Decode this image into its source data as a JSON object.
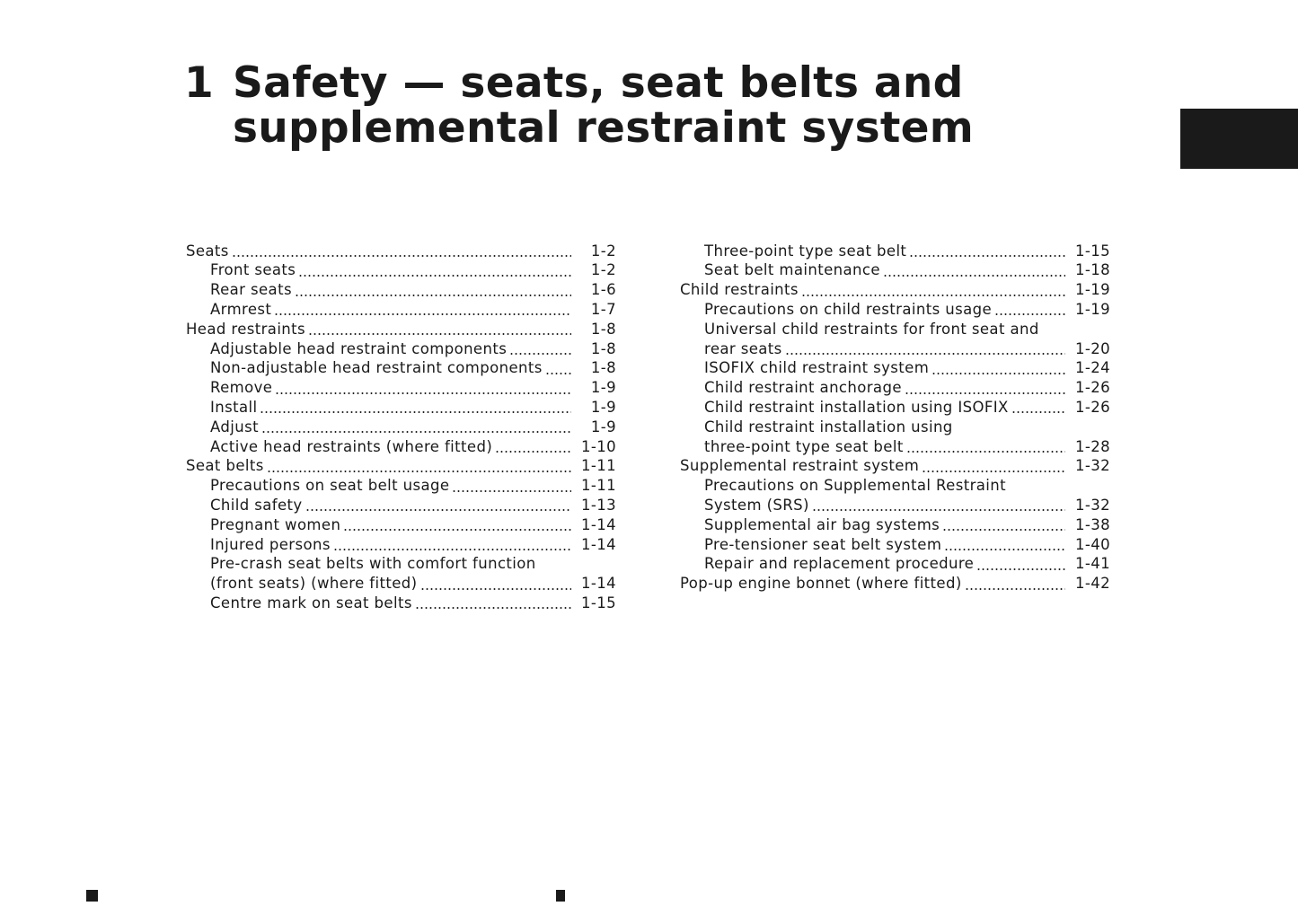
{
  "header": {
    "number": "1",
    "title_lines": [
      "Safety — seats, seat belts and",
      "supplemental restraint system"
    ]
  },
  "columns": [
    [
      {
        "level": 1,
        "lines": [
          "Seats"
        ],
        "page": "1-2"
      },
      {
        "level": 2,
        "lines": [
          "Front seats"
        ],
        "page": "1-2"
      },
      {
        "level": 2,
        "lines": [
          "Rear seats"
        ],
        "page": "1-6"
      },
      {
        "level": 2,
        "lines": [
          "Armrest"
        ],
        "page": "1-7"
      },
      {
        "level": 1,
        "lines": [
          "Head restraints"
        ],
        "page": "1-8"
      },
      {
        "level": 2,
        "lines": [
          "Adjustable head restraint components"
        ],
        "page": "1-8"
      },
      {
        "level": 2,
        "lines": [
          "Non-adjustable head restraint components"
        ],
        "page": "1-8"
      },
      {
        "level": 2,
        "lines": [
          "Remove"
        ],
        "page": "1-9"
      },
      {
        "level": 2,
        "lines": [
          "Install"
        ],
        "page": "1-9"
      },
      {
        "level": 2,
        "lines": [
          "Adjust"
        ],
        "page": "1-9"
      },
      {
        "level": 2,
        "lines": [
          "Active head restraints (where fitted)"
        ],
        "page": "1-10"
      },
      {
        "level": 1,
        "lines": [
          "Seat belts"
        ],
        "page": "1-11"
      },
      {
        "level": 2,
        "lines": [
          "Precautions on seat belt usage"
        ],
        "page": "1-11"
      },
      {
        "level": 2,
        "lines": [
          "Child safety"
        ],
        "page": "1-13"
      },
      {
        "level": 2,
        "lines": [
          "Pregnant women"
        ],
        "page": "1-14"
      },
      {
        "level": 2,
        "lines": [
          "Injured persons"
        ],
        "page": "1-14"
      },
      {
        "level": 2,
        "lines": [
          "Pre-crash seat belts with comfort function",
          "(front seats) (where fitted)"
        ],
        "page": "1-14"
      },
      {
        "level": 2,
        "lines": [
          "Centre mark on seat belts"
        ],
        "page": "1-15"
      }
    ],
    [
      {
        "level": 2,
        "lines": [
          "Three-point type seat belt"
        ],
        "page": "1-15"
      },
      {
        "level": 2,
        "lines": [
          "Seat belt maintenance"
        ],
        "page": "1-18"
      },
      {
        "level": 1,
        "lines": [
          "Child restraints"
        ],
        "page": "1-19"
      },
      {
        "level": 2,
        "lines": [
          "Precautions on child restraints usage"
        ],
        "page": "1-19"
      },
      {
        "level": 2,
        "lines": [
          "Universal child restraints for front seat and",
          "rear seats"
        ],
        "page": "1-20"
      },
      {
        "level": 2,
        "lines": [
          "ISOFIX child restraint system"
        ],
        "page": "1-24"
      },
      {
        "level": 2,
        "lines": [
          "Child restraint anchorage"
        ],
        "page": "1-26"
      },
      {
        "level": 2,
        "lines": [
          "Child restraint installation using ISOFIX"
        ],
        "page": "1-26"
      },
      {
        "level": 2,
        "lines": [
          "Child restraint installation using",
          "three-point type seat belt"
        ],
        "page": "1-28"
      },
      {
        "level": 1,
        "lines": [
          "Supplemental restraint system"
        ],
        "page": "1-32"
      },
      {
        "level": 2,
        "lines": [
          "Precautions on Supplemental Restraint",
          "System (SRS)"
        ],
        "page": "1-32"
      },
      {
        "level": 2,
        "lines": [
          "Supplemental air bag systems"
        ],
        "page": "1-38"
      },
      {
        "level": 2,
        "lines": [
          "Pre-tensioner seat belt system"
        ],
        "page": "1-40"
      },
      {
        "level": 2,
        "lines": [
          "Repair and replacement procedure"
        ],
        "page": "1-41"
      },
      {
        "level": 1,
        "lines": [
          "Pop-up engine bonnet (where fitted)"
        ],
        "page": "1-42"
      }
    ]
  ]
}
